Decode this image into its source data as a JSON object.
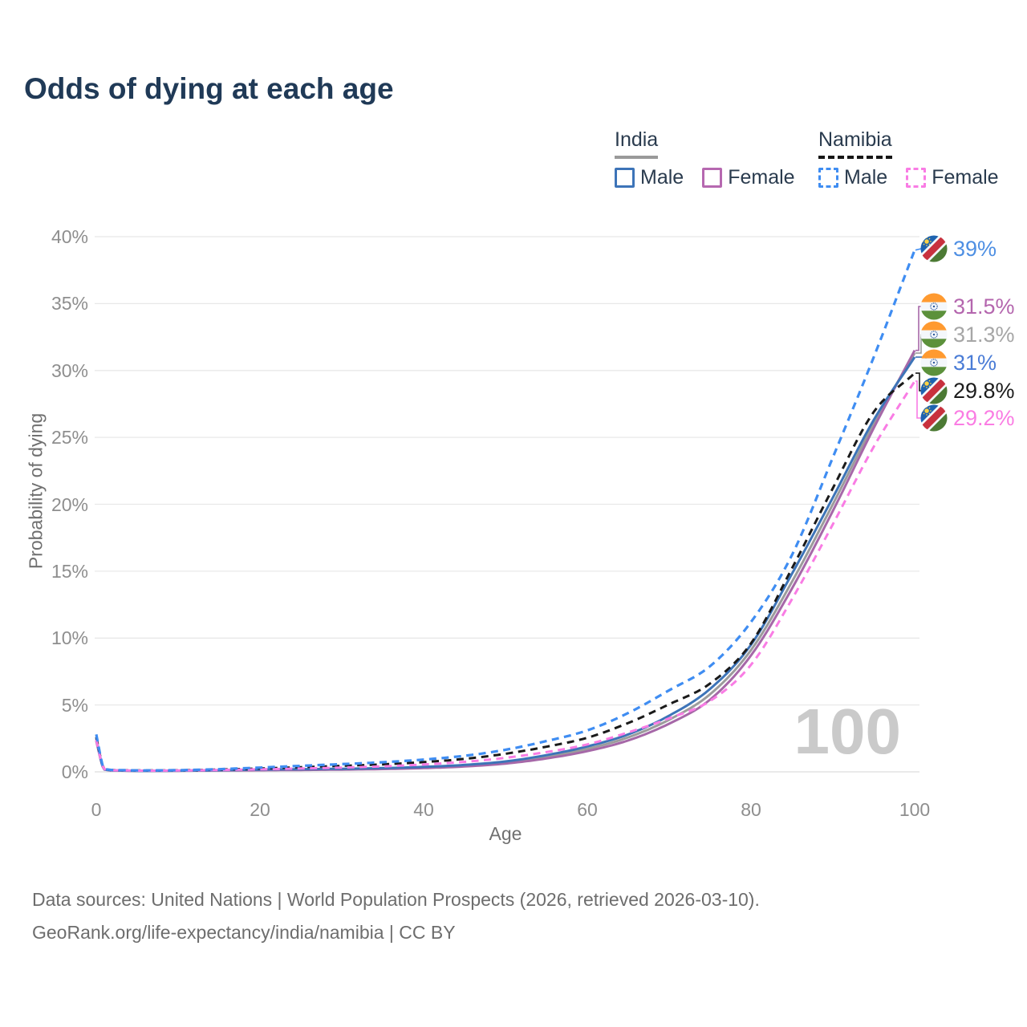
{
  "title": "Odds of dying at each age",
  "watermark_age": "100",
  "legend": {
    "groups": [
      {
        "name": "India",
        "underline_style": "solid",
        "underline_color": "#9A9A9A",
        "items": [
          {
            "label": "Male",
            "swatch_style": "solid",
            "color": "#3D74B8"
          },
          {
            "label": "Female",
            "swatch_style": "solid",
            "color": "#B668B0"
          }
        ]
      },
      {
        "name": "Namibia",
        "underline_style": "dashed",
        "underline_color": "#161616",
        "items": [
          {
            "label": "Male",
            "swatch_style": "dashed",
            "color": "#3F8DF2"
          },
          {
            "label": "Female",
            "swatch_style": "dashed",
            "color": "#F97CE4"
          }
        ]
      }
    ]
  },
  "axes": {
    "y_title": "Probability of dying",
    "x_title": "Age",
    "y_ticks": [
      {
        "label": "0%",
        "value": 0
      },
      {
        "label": "5%",
        "value": 5
      },
      {
        "label": "10%",
        "value": 10
      },
      {
        "label": "15%",
        "value": 15
      },
      {
        "label": "20%",
        "value": 20
      },
      {
        "label": "25%",
        "value": 25
      },
      {
        "label": "30%",
        "value": 30
      },
      {
        "label": "35%",
        "value": 35
      },
      {
        "label": "40%",
        "value": 40
      }
    ],
    "x_ticks": [
      {
        "label": "0",
        "value": 0
      },
      {
        "label": "20",
        "value": 20
      },
      {
        "label": "40",
        "value": 40
      },
      {
        "label": "60",
        "value": 60
      },
      {
        "label": "80",
        "value": 80
      },
      {
        "label": "100",
        "value": 100
      }
    ]
  },
  "chart_data": {
    "type": "line",
    "title": "Odds of dying at each age",
    "xlabel": "Age",
    "ylabel": "Probability of dying",
    "x_range": [
      0,
      100
    ],
    "y_range_percent": [
      0,
      40
    ],
    "grid": "horizontal",
    "legend_position": "top-right",
    "series": [
      {
        "id": "india-total",
        "country": "india",
        "group": "India",
        "sex": "Both",
        "style": "solid",
        "color": "#9C9C9C",
        "label_color": "#A6A6A6",
        "end_label": "31.3%",
        "end_value": 31.3,
        "ages": [
          0,
          1,
          3,
          5,
          10,
          15,
          20,
          25,
          30,
          35,
          40,
          45,
          50,
          55,
          60,
          65,
          70,
          75,
          80,
          85,
          90,
          95,
          100
        ],
        "values_percent": [
          2.4,
          0.175,
          0.095,
          0.075,
          0.085,
          0.11,
          0.15,
          0.17,
          0.2,
          0.25,
          0.33,
          0.46,
          0.7,
          1.12,
          1.72,
          2.58,
          3.9,
          5.8,
          9.1,
          14.2,
          20.0,
          26.0,
          31.3
        ]
      },
      {
        "id": "india-female",
        "country": "india",
        "group": "India",
        "sex": "Female",
        "style": "solid",
        "color": "#A668A8",
        "label_color": "#B466AE",
        "end_label": "31.5%",
        "end_value": 31.5,
        "ages": [
          0,
          1,
          3,
          5,
          10,
          15,
          20,
          25,
          30,
          35,
          40,
          45,
          50,
          55,
          60,
          65,
          70,
          75,
          80,
          85,
          90,
          95,
          100
        ],
        "values_percent": [
          2.3,
          0.17,
          0.09,
          0.07,
          0.08,
          0.1,
          0.12,
          0.14,
          0.17,
          0.21,
          0.28,
          0.4,
          0.62,
          1.0,
          1.55,
          2.35,
          3.6,
          5.4,
          8.7,
          13.7,
          19.5,
          25.7,
          31.5
        ]
      },
      {
        "id": "india-male",
        "country": "india",
        "group": "India",
        "sex": "Male",
        "style": "solid",
        "color": "#3D74B8",
        "label_color": "#4A7CD6",
        "end_label": "31%",
        "end_value": 31,
        "ages": [
          0,
          1,
          3,
          5,
          10,
          15,
          20,
          25,
          30,
          35,
          40,
          45,
          50,
          55,
          60,
          65,
          70,
          75,
          80,
          85,
          90,
          95,
          100
        ],
        "values_percent": [
          2.5,
          0.18,
          0.1,
          0.08,
          0.09,
          0.12,
          0.17,
          0.2,
          0.23,
          0.28,
          0.37,
          0.52,
          0.78,
          1.25,
          1.9,
          2.8,
          4.2,
          6.2,
          9.5,
          14.8,
          20.5,
          26.3,
          31.0
        ]
      },
      {
        "id": "namibia-total",
        "country": "namibia",
        "group": "Namibia",
        "sex": "Both",
        "style": "dashed",
        "color": "#1A1A1A",
        "label_color": "#1C1C1C",
        "end_label": "29.8%",
        "end_value": 29.8,
        "ages": [
          0,
          1,
          3,
          5,
          10,
          15,
          20,
          25,
          30,
          35,
          40,
          45,
          50,
          55,
          60,
          65,
          70,
          75,
          80,
          85,
          90,
          95,
          100
        ],
        "values_percent": [
          2.6,
          0.21,
          0.12,
          0.1,
          0.115,
          0.17,
          0.25,
          0.35,
          0.45,
          0.56,
          0.73,
          0.97,
          1.35,
          1.88,
          2.55,
          3.65,
          5.05,
          6.6,
          9.6,
          15.2,
          21.2,
          26.9,
          29.8
        ]
      },
      {
        "id": "namibia-female",
        "country": "namibia",
        "group": "Namibia",
        "sex": "Female",
        "style": "dashed",
        "color": "#F97CE4",
        "label_color": "#FA7CE3",
        "end_label": "29.2%",
        "end_value": 29.2,
        "ages": [
          0,
          1,
          3,
          5,
          10,
          15,
          20,
          25,
          30,
          35,
          40,
          45,
          50,
          55,
          60,
          65,
          70,
          75,
          80,
          85,
          90,
          95,
          100
        ],
        "values_percent": [
          2.4,
          0.2,
          0.11,
          0.09,
          0.1,
          0.14,
          0.19,
          0.25,
          0.32,
          0.41,
          0.55,
          0.75,
          1.05,
          1.48,
          2.05,
          2.95,
          4.0,
          5.3,
          8.0,
          12.9,
          18.5,
          24.3,
          29.2
        ]
      },
      {
        "id": "namibia-male",
        "country": "namibia",
        "group": "Namibia",
        "sex": "Male",
        "style": "dashed",
        "color": "#3F8DF2",
        "label_color": "#4E8FE3",
        "end_label": "39%",
        "end_value": 39,
        "ages": [
          0,
          1,
          3,
          5,
          10,
          15,
          20,
          25,
          30,
          35,
          40,
          45,
          50,
          55,
          60,
          65,
          70,
          75,
          80,
          85,
          90,
          95,
          100
        ],
        "values_percent": [
          2.8,
          0.22,
          0.13,
          0.11,
          0.13,
          0.2,
          0.32,
          0.45,
          0.58,
          0.72,
          0.92,
          1.2,
          1.65,
          2.3,
          3.1,
          4.4,
          6.1,
          7.9,
          11.2,
          16.2,
          23.5,
          31.0,
          39.0
        ]
      }
    ]
  },
  "footer": {
    "line1": "Data sources: United Nations | World Population Prospects (2026, retrieved 2026-03-10).",
    "line2": "GeoRank.org/life-expectancy/india/namibia | CC BY"
  }
}
